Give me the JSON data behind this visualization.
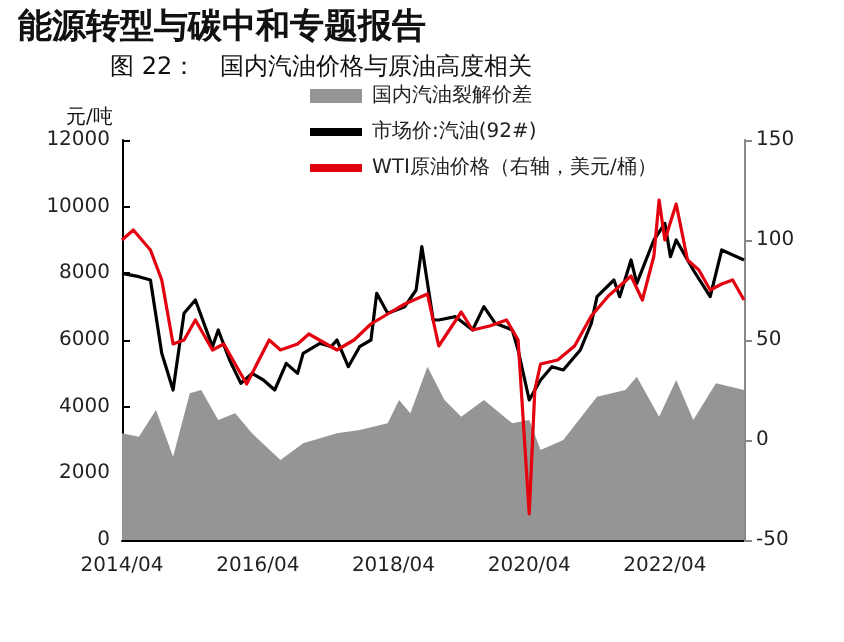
{
  "chart_data": {
    "type": "line",
    "title": "能源转型与碳中和专题报告",
    "subtitle": "图 22：　国内汽油价格与原油高度相关",
    "ylabel": "元/吨",
    "xlim": [
      "2014-04",
      "2023-06"
    ],
    "xticks": [
      {
        "value": "2014-04",
        "label": "2014/04"
      },
      {
        "value": "2016-04",
        "label": "2016/04"
      },
      {
        "value": "2018-04",
        "label": "2018/04"
      },
      {
        "value": "2020-04",
        "label": "2020/04"
      },
      {
        "value": "2022-04",
        "label": "2022/04"
      }
    ],
    "ylim": [
      0,
      12000
    ],
    "yticks": [
      0,
      2000,
      4000,
      6000,
      8000,
      10000,
      12000
    ],
    "y2lim": [
      -50,
      150
    ],
    "y2ticks": [
      -50,
      0,
      50,
      100,
      150
    ],
    "grid": false,
    "legend": "top",
    "marker": "none",
    "line_style": "solid",
    "series": [
      {
        "name": "国内汽油裂解价差",
        "type": "area",
        "color": "#959595",
        "x": [
          "2014-04",
          "2014-07",
          "2014-10",
          "2015-01",
          "2015-04",
          "2015-06",
          "2015-09",
          "2015-12",
          "2016-03",
          "2016-08",
          "2016-12",
          "2017-06",
          "2017-10",
          "2018-03",
          "2018-05",
          "2018-07",
          "2018-10",
          "2019-01",
          "2019-04",
          "2019-08",
          "2020-01",
          "2020-04",
          "2020-06",
          "2020-10",
          "2021-04",
          "2021-09",
          "2021-11",
          "2022-03",
          "2022-06",
          "2022-09",
          "2023-01",
          "2023-06"
        ],
        "values": [
          3200,
          3100,
          3900,
          2500,
          4400,
          4500,
          3600,
          3800,
          3200,
          2400,
          2900,
          3200,
          3300,
          3500,
          4200,
          3800,
          5200,
          4200,
          3700,
          4200,
          3500,
          3600,
          2700,
          3000,
          4300,
          4500,
          4900,
          3700,
          4800,
          3600,
          4700,
          4500
        ]
      },
      {
        "name": "市场价:汽油(92#)",
        "color": "#000000",
        "x": [
          "2014-04",
          "2014-07",
          "2014-09",
          "2014-11",
          "2015-01",
          "2015-03",
          "2015-05",
          "2015-08",
          "2015-09",
          "2015-11",
          "2016-01",
          "2016-03",
          "2016-05",
          "2016-07",
          "2016-09",
          "2016-11",
          "2016-12",
          "2017-03",
          "2017-05",
          "2017-06",
          "2017-08",
          "2017-10",
          "2017-12",
          "2018-01",
          "2018-03",
          "2018-06",
          "2018-08",
          "2018-09",
          "2018-11",
          "2018-12",
          "2019-03",
          "2019-06",
          "2019-08",
          "2019-10",
          "2020-01",
          "2020-02",
          "2020-04",
          "2020-06",
          "2020-08",
          "2020-10",
          "2021-01",
          "2021-03",
          "2021-04",
          "2021-07",
          "2021-08",
          "2021-10",
          "2021-11",
          "2022-02",
          "2022-04",
          "2022-05",
          "2022-06",
          "2022-09",
          "2022-12",
          "2023-02",
          "2023-06"
        ],
        "values": [
          8000,
          7900,
          7800,
          5600,
          4500,
          6800,
          7200,
          5800,
          6300,
          5400,
          4700,
          5000,
          4800,
          4500,
          5300,
          5000,
          5600,
          5900,
          5800,
          6000,
          5200,
          5800,
          6000,
          7400,
          6800,
          7000,
          7500,
          8800,
          6600,
          6600,
          6700,
          6300,
          7000,
          6500,
          6300,
          5700,
          4200,
          4800,
          5200,
          5100,
          5700,
          6500,
          7300,
          7800,
          7300,
          8400,
          7700,
          9000,
          9500,
          8500,
          9000,
          8100,
          7300,
          8700,
          8400
        ]
      },
      {
        "name": "WTI原油价格（右轴，美元/桶）",
        "axis": "y2",
        "color": "#e3000f",
        "x": [
          "2014-04",
          "2014-06",
          "2014-09",
          "2014-11",
          "2015-01",
          "2015-03",
          "2015-05",
          "2015-08",
          "2015-10",
          "2015-12",
          "2016-02",
          "2016-06",
          "2016-08",
          "2016-11",
          "2017-01",
          "2017-06",
          "2017-09",
          "2017-12",
          "2018-03",
          "2018-06",
          "2018-10",
          "2018-12",
          "2019-04",
          "2019-06",
          "2019-09",
          "2019-12",
          "2020-02",
          "2020-04",
          "2020-05",
          "2020-06",
          "2020-09",
          "2020-12",
          "2021-03",
          "2021-06",
          "2021-10",
          "2021-12",
          "2022-02",
          "2022-03",
          "2022-04",
          "2022-06",
          "2022-08",
          "2022-10",
          "2022-12",
          "2023-02",
          "2023-04",
          "2023-06"
        ],
        "values": [
          100,
          105,
          95,
          80,
          48,
          50,
          60,
          45,
          48,
          38,
          28,
          50,
          45,
          48,
          53,
          45,
          50,
          58,
          63,
          68,
          73,
          47,
          64,
          55,
          57,
          60,
          50,
          -37,
          25,
          38,
          40,
          47,
          62,
          72,
          82,
          70,
          92,
          120,
          100,
          118,
          90,
          85,
          75,
          78,
          80,
          70
        ]
      }
    ]
  }
}
